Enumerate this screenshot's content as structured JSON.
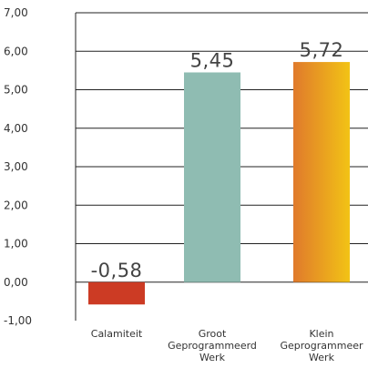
{
  "chart_data": {
    "type": "bar",
    "categories": [
      [
        "Calamiteit"
      ],
      [
        "Groot",
        "Geprogrammeerd",
        "Werk"
      ],
      [
        "Klein",
        "Geprogrammeer",
        "Werk"
      ]
    ],
    "values": [
      -0.58,
      5.45,
      5.72
    ],
    "data_labels": [
      "-0,58",
      "5,45",
      "5,72"
    ],
    "y_ticks": [
      "-1,00",
      "0,00",
      "1,00",
      "2,00",
      "3,00",
      "4,00",
      "5,00",
      "6,00",
      "7,00"
    ],
    "y_tick_values": [
      -1,
      0,
      1,
      2,
      3,
      4,
      5,
      6,
      7
    ],
    "ylim": [
      -1,
      7
    ],
    "grid": true,
    "title": "",
    "xlabel": "",
    "ylabel": "",
    "colors": {
      "bar_1": "#cc3b24",
      "bar_2": "#8fbcb2",
      "bar_3_gradient": [
        "#e07a2c",
        "#f2c315"
      ],
      "grid": "#222222",
      "text": "#333333"
    }
  }
}
